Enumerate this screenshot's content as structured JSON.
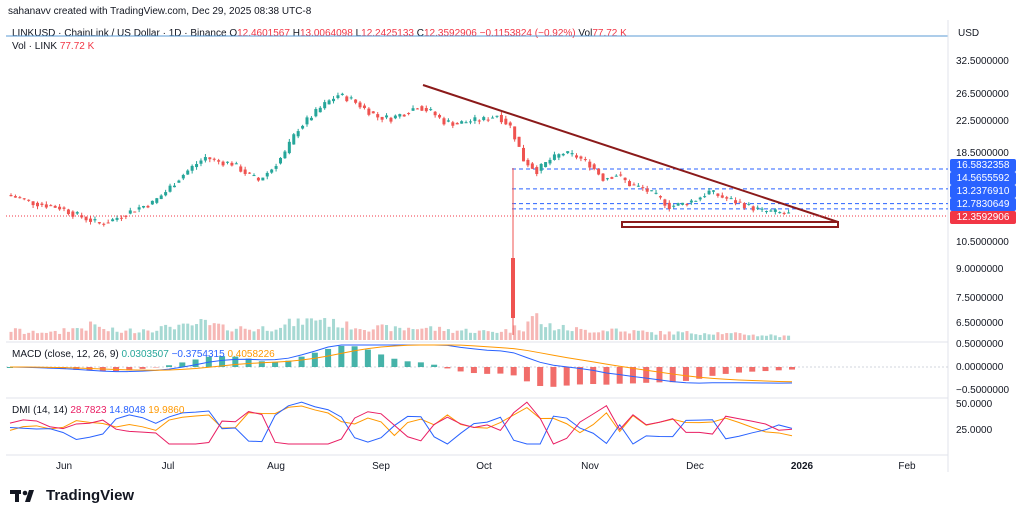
{
  "header": {
    "created_by": "sahanavv created with TradingView.com, Dec 29, 2025 08:38 UTC-8"
  },
  "symbol_legend": {
    "name": "LINKUSD · ChainLink / US Dollar · 1D · Binance",
    "open_label": "O",
    "open": "12.4601567",
    "high_label": "H",
    "high": "13.0064098",
    "low_label": "L",
    "low": "12.2425133",
    "close_label": "C",
    "close": "12.3592906",
    "change": "−0.1153824 (−0.92%)",
    "vol_label": "Vol",
    "vol": "77.72 K"
  },
  "vol_legend": {
    "name": "Vol · LINK",
    "value": "77.72 K"
  },
  "macd_legend": {
    "name": "MACD (close, 12, 26, 9)",
    "v1": "0.0303507",
    "v2": "−0.3754315",
    "v3": "0.4058226"
  },
  "dmi_legend": {
    "name": "DMI (14, 14)",
    "v1": "28.7823",
    "v2": "14.8048",
    "v3": "19.9860"
  },
  "axis": {
    "currency": "USD",
    "price_ticks": [
      "32.5000000",
      "26.5000000",
      "22.5000000",
      "18.5000000",
      "10.5000000",
      "9.0000000",
      "7.5000000",
      "6.5000000"
    ],
    "macd_ticks": [
      "0.5000000",
      "0.0000000",
      "−0.5000000"
    ],
    "dmi_ticks": [
      "50.0000",
      "25.0000"
    ],
    "x_ticks": [
      "Jun",
      "Jul",
      "Aug",
      "Sep",
      "Oct",
      "Nov",
      "Dec",
      "2026",
      "Feb"
    ]
  },
  "price_tags": [
    {
      "value": "16.5832358",
      "color": "#2962ff"
    },
    {
      "value": "14.5655592",
      "color": "#2962ff"
    },
    {
      "value": "13.2376910",
      "color": "#2962ff"
    },
    {
      "value": "12.7830649",
      "color": "#2962ff"
    },
    {
      "value": "12.3592906",
      "color": "#f23645"
    }
  ],
  "brand": {
    "name": "TradingView"
  },
  "colors": {
    "up": "#26a69a",
    "down": "#ef5350",
    "trendline": "#8b1a1a",
    "level": "#2962ff",
    "macd": "#2962ff",
    "signal": "#ff9800",
    "adx": "#ff9800",
    "plus_di": "#2962ff",
    "minus_di": "#e91e63"
  },
  "chart_data": {
    "type": "candlestick",
    "title": "LINKUSD · ChainLink / US Dollar · 1D · Binance",
    "x_labels": [
      "Jun",
      "Jul",
      "Aug",
      "Sep",
      "Oct",
      "Nov",
      "Dec",
      "2026",
      "Feb"
    ],
    "y_scale": "log",
    "ylim": [
      5.8,
      38
    ],
    "series": [
      {
        "name": "LINKUSD",
        "approx_closes": [
          14.0,
          13.7,
          13.3,
          13.1,
          12.9,
          12.4,
          12.0,
          11.6,
          11.9,
          12.4,
          12.9,
          13.3,
          14.3,
          15.6,
          16.8,
          17.9,
          17.4,
          17.2,
          16.2,
          15.4,
          16.6,
          18.4,
          21.6,
          23.4,
          25.3,
          26.9,
          26.1,
          24.6,
          23.3,
          23.1,
          23.9,
          25.0,
          24.1,
          22.6,
          22.3,
          22.7,
          22.9,
          23.6,
          21.9,
          17.6,
          16.4,
          17.6,
          18.4,
          18.0,
          17.1,
          15.6,
          16.0,
          15.0,
          14.6,
          13.9,
          13.0,
          13.2,
          13.6,
          14.3,
          13.8,
          13.4,
          13.0,
          12.6,
          12.5,
          12.36
        ]
      },
      {
        "name": "Vol · LINK",
        "approx_values": [
          0.4,
          0.3,
          0.35,
          0.3,
          0.45,
          0.5,
          0.6,
          0.4,
          0.35,
          0.4,
          0.45,
          0.5,
          0.6,
          0.55,
          0.7,
          0.6,
          0.5,
          0.5,
          0.45,
          0.5,
          0.6,
          0.7,
          0.8,
          0.9,
          0.7,
          0.6,
          0.55,
          0.5,
          0.5,
          0.45,
          0.5,
          0.5,
          0.45,
          0.4,
          0.4,
          0.35,
          0.35,
          0.4,
          0.5,
          1.0,
          0.6,
          0.5,
          0.45,
          0.4,
          0.4,
          0.45,
          0.35,
          0.35,
          0.3,
          0.3,
          0.3,
          0.3,
          0.3,
          0.3,
          0.25,
          0.25,
          0.2,
          0.2,
          0.15,
          0.1
        ]
      }
    ],
    "annotations": [
      {
        "type": "descending trendline",
        "from_date": "mid-Sep",
        "from_price": 28.8,
        "to_date": "Jan",
        "to_price": 11.9
      },
      {
        "type": "horizontal support box",
        "price_low": 11.6,
        "price_high": 12.05
      },
      {
        "type": "level",
        "price": 16.5832358
      },
      {
        "type": "level",
        "price": 14.5655592
      },
      {
        "type": "level",
        "price": 13.237691
      },
      {
        "type": "level",
        "price": 12.7830649
      }
    ]
  }
}
